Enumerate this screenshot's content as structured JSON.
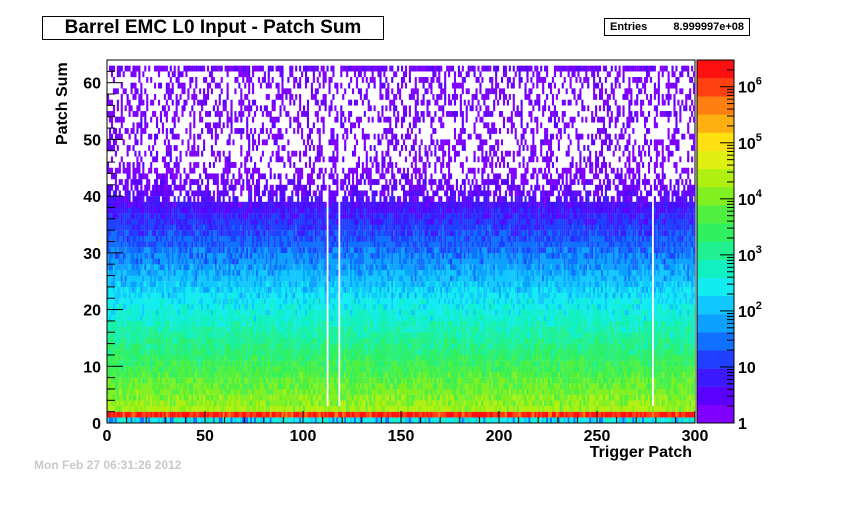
{
  "title": "Barrel EMC L0 Input - Patch Sum",
  "stats": {
    "label": "Entries",
    "value": "8.999997e+08"
  },
  "footer": "Mon Feb 27 06:31:26 2012",
  "chart_data": {
    "type": "heatmap",
    "title": "Barrel EMC L0 Input - Patch Sum",
    "xlabel": "Trigger Patch",
    "ylabel": "Patch Sum",
    "xlim": [
      0,
      300
    ],
    "ylim": [
      0,
      64
    ],
    "x_ticks": [
      0,
      50,
      100,
      150,
      200,
      250,
      300
    ],
    "y_ticks": [
      0,
      10,
      20,
      30,
      40,
      50,
      60
    ],
    "z_scale": "log",
    "z_range": [
      1,
      3000000
    ],
    "z_ticks": [
      {
        "value": 1,
        "label": "1"
      },
      {
        "value": 10,
        "label": "10"
      },
      {
        "value": 100,
        "label": "10",
        "exp": "2"
      },
      {
        "value": 1000,
        "label": "10",
        "exp": "3"
      },
      {
        "value": 10000,
        "label": "10",
        "exp": "4"
      },
      {
        "value": 100000,
        "label": "10",
        "exp": "5"
      },
      {
        "value": 1000000,
        "label": "10",
        "exp": "6"
      }
    ],
    "palette": [
      "#7f00ff",
      "#5a00ff",
      "#3c19ff",
      "#2040ff",
      "#1070ff",
      "#0ca0ff",
      "#10c8ff",
      "#10ecf0",
      "#10f0c0",
      "#20f090",
      "#30f060",
      "#50f040",
      "#80f020",
      "#b0f010",
      "#e0f010",
      "#ffe010",
      "#ffb010",
      "#ff8010",
      "#ff4010",
      "#ff1010"
    ],
    "grid": false,
    "description_of_values": {
      "row_1_typical": 1000000,
      "rows_2_to_10_typical_range": [
        20000,
        1000
      ],
      "rows_10_to_30_typical_range": [
        1000,
        30
      ],
      "rows_30_to_45_typical_range": [
        30,
        1
      ],
      "rows_45_to_63_typical": "sparse, 1-2 counts",
      "row_62_typical": "~1-3 counts across all patches"
    }
  }
}
